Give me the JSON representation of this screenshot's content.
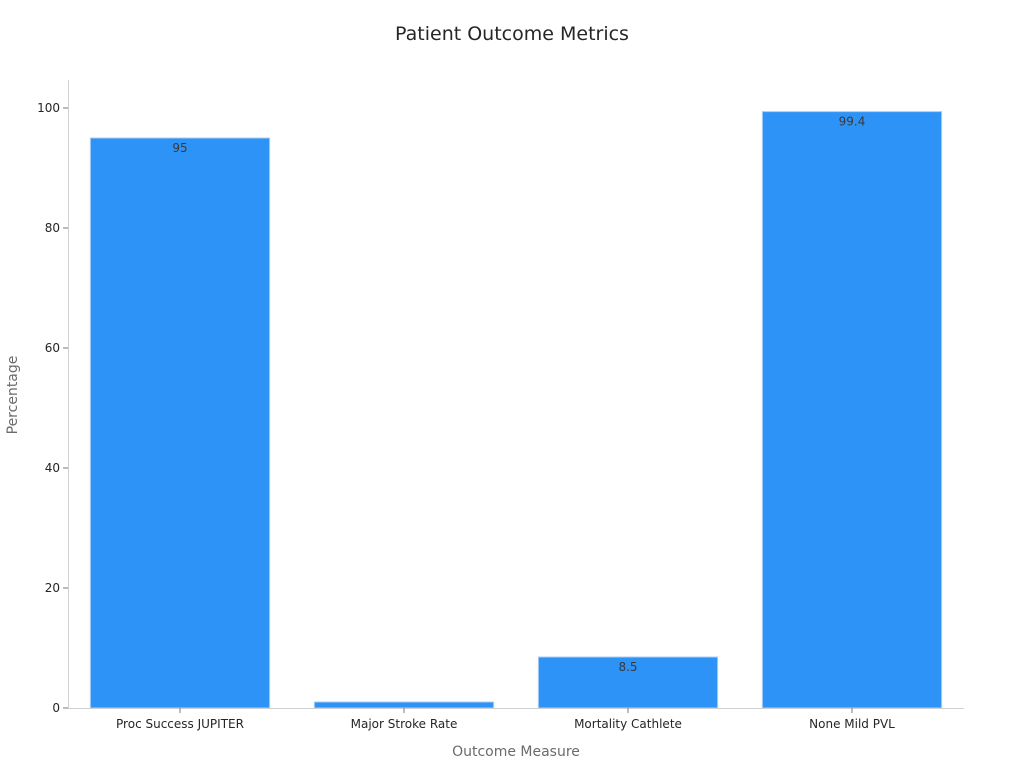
{
  "chart_data": {
    "type": "bar",
    "title": "Patient Outcome Metrics",
    "xlabel": "Outcome Measure",
    "ylabel": "Percentage",
    "categories": [
      "Proc Success JUPITER",
      "Major Stroke Rate",
      "Mortality Cathlete",
      "None Mild PVL"
    ],
    "values": [
      95,
      1,
      8.5,
      99.4
    ],
    "value_labels": [
      "95",
      "",
      "8.5",
      "99.4"
    ],
    "yticks": [
      0,
      20,
      40,
      60,
      80,
      100
    ],
    "ylim": [
      0,
      104.5
    ],
    "grid": false,
    "legend": "none",
    "bar_color": "#2d93f7",
    "bar_edge_color": "#a9cdf3"
  }
}
